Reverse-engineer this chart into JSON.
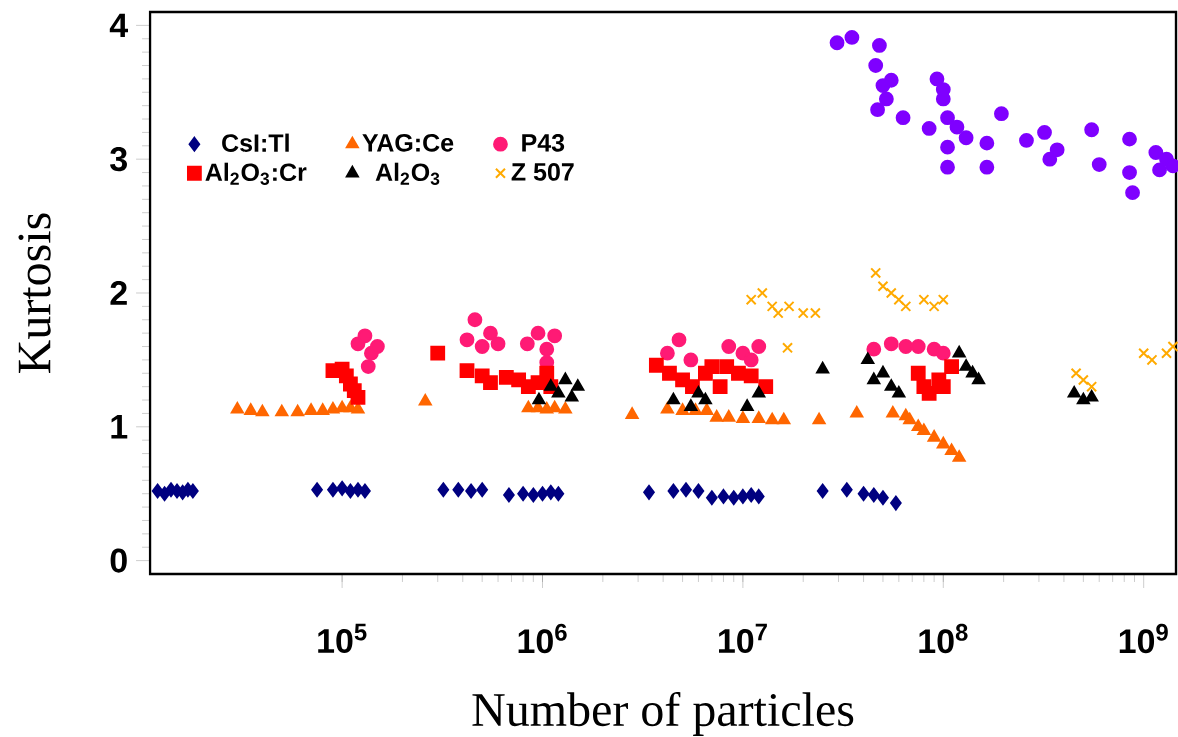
{
  "chart_data": {
    "type": "scatter",
    "xlabel": "Number of particles",
    "ylabel": "Kurtosis",
    "log": "x",
    "grid": false,
    "legend": "top left",
    "xlim": [
      11000,
      1450000000
    ],
    "ylim": [
      -0.1,
      4.1
    ],
    "xticks": [
      {
        "value": 100000,
        "label": "10$^{5}$"
      },
      {
        "value": 1000000,
        "label": "10$^{6}$"
      },
      {
        "value": 10000000,
        "label": "10$^{7}$"
      },
      {
        "value": 100000000,
        "label": "10$^{8}$"
      },
      {
        "value": 1000000000,
        "label": "10$^{9}$"
      }
    ],
    "yticks": [
      0,
      1,
      2,
      3,
      4
    ],
    "series": [
      {
        "name": "CsI:Tl",
        "color": "#000080",
        "marker": "diamond",
        "x": [
          12000,
          13000,
          14000,
          15000,
          16000,
          17000,
          18000,
          75000,
          90000,
          100000,
          110000,
          120000,
          130000,
          320000,
          380000,
          440000,
          500000,
          680000,
          800000,
          900000,
          1000000,
          1100000,
          1200000,
          3400000,
          4500000,
          5200000,
          6000000,
          7000000,
          8000000,
          9000000,
          10000000,
          11000000,
          12000000,
          25000000,
          33000000,
          40000000,
          45000000,
          50000000,
          58000000
        ],
        "values": [
          0.52,
          0.5,
          0.53,
          0.52,
          0.51,
          0.53,
          0.52,
          0.53,
          0.53,
          0.54,
          0.52,
          0.53,
          0.52,
          0.53,
          0.53,
          0.52,
          0.53,
          0.49,
          0.5,
          0.49,
          0.5,
          0.51,
          0.5,
          0.51,
          0.52,
          0.53,
          0.52,
          0.47,
          0.48,
          0.47,
          0.48,
          0.49,
          0.48,
          0.52,
          0.53,
          0.5,
          0.49,
          0.47,
          0.43
        ]
      },
      {
        "name": "YAG:Ce",
        "color": "#ff6600",
        "marker": "triangle",
        "x": [
          30000,
          35000,
          40000,
          50000,
          60000,
          70000,
          80000,
          90000,
          100000,
          110000,
          120000,
          260000,
          850000,
          950000,
          1050000,
          1150000,
          1300000,
          2800000,
          4200000,
          5000000,
          5800000,
          6600000,
          7400000,
          8500000,
          10000000,
          12000000,
          14000000,
          16000000,
          24000000,
          37000000,
          56000000,
          65000000,
          68000000,
          75000000,
          80000000,
          90000000,
          100000000,
          110000000,
          120000000
        ],
        "values": [
          1.13,
          1.12,
          1.11,
          1.11,
          1.11,
          1.12,
          1.12,
          1.13,
          1.14,
          1.14,
          1.13,
          1.19,
          1.14,
          1.14,
          1.13,
          1.14,
          1.13,
          1.09,
          1.13,
          1.12,
          1.12,
          1.12,
          1.07,
          1.07,
          1.06,
          1.06,
          1.05,
          1.05,
          1.05,
          1.1,
          1.1,
          1.08,
          1.05,
          1.0,
          0.97,
          0.92,
          0.87,
          0.82,
          0.77
        ]
      },
      {
        "name": "P43",
        "color": "#ff1a75",
        "marker": "circle",
        "x": [
          120000,
          130000,
          140000,
          150000,
          135000,
          420000,
          460000,
          500000,
          550000,
          600000,
          840000,
          950000,
          1050000,
          1150000,
          1050000,
          4200000,
          4800000,
          5500000,
          8500000,
          10000000,
          12000000,
          11000000,
          45000000,
          55000000,
          65000000,
          75000000,
          90000000,
          100000000
        ],
        "values": [
          1.62,
          1.68,
          1.55,
          1.6,
          1.45,
          1.65,
          1.8,
          1.6,
          1.7,
          1.62,
          1.62,
          1.7,
          1.58,
          1.68,
          1.48,
          1.55,
          1.65,
          1.5,
          1.6,
          1.55,
          1.6,
          1.5,
          1.58,
          1.62,
          1.6,
          1.6,
          1.58,
          1.55
        ]
      },
      {
        "name": "Al$_{2}$O$_{3}$:Cr",
        "color": "#ff0000",
        "marker": "square",
        "x": [
          90000,
          100000,
          105000,
          110000,
          115000,
          120000,
          300000,
          420000,
          500000,
          550000,
          660000,
          760000,
          850000,
          950000,
          1050000,
          1100000,
          3700000,
          4300000,
          5000000,
          5600000,
          6500000,
          7000000,
          7700000,
          8300000,
          9500000,
          11000000,
          13000000,
          75000000,
          80000000,
          85000000,
          95000000,
          100000000,
          110000000
        ],
        "values": [
          1.42,
          1.43,
          1.38,
          1.32,
          1.27,
          1.22,
          1.55,
          1.42,
          1.38,
          1.33,
          1.37,
          1.35,
          1.3,
          1.33,
          1.4,
          1.3,
          1.46,
          1.4,
          1.35,
          1.3,
          1.4,
          1.45,
          1.3,
          1.45,
          1.4,
          1.38,
          1.3,
          1.4,
          1.3,
          1.25,
          1.35,
          1.3,
          1.45
        ]
      },
      {
        "name": "Al$_{2}$O$_{3}$",
        "color": "#000000",
        "marker": "triangle",
        "x": [
          960000,
          1100000,
          1200000,
          1300000,
          1400000,
          1500000,
          4500000,
          5500000,
          6000000,
          6500000,
          10500000,
          12000000,
          25000000,
          42000000,
          45000000,
          50000000,
          55000000,
          60000000,
          120000000,
          130000000,
          140000000,
          150000000,
          450000000,
          500000000,
          550000000
        ],
        "values": [
          1.2,
          1.3,
          1.25,
          1.35,
          1.22,
          1.3,
          1.2,
          1.15,
          1.25,
          1.2,
          1.15,
          1.25,
          1.43,
          1.5,
          1.35,
          1.4,
          1.3,
          1.25,
          1.55,
          1.45,
          1.4,
          1.35,
          1.25,
          1.2,
          1.22
        ]
      },
      {
        "name": "Z 507",
        "color": "#ffaa00",
        "marker": "cross",
        "x": [
          11000000,
          12500000,
          14000000,
          15000000,
          17000000,
          20000000,
          23000000,
          16700000,
          46000000,
          50000000,
          55000000,
          60000000,
          65000000,
          80000000,
          90000000,
          100000000,
          460000000,
          500000000,
          550000000,
          1000000000,
          1100000000,
          1300000000,
          1400000000
        ],
        "values": [
          1.95,
          2.0,
          1.9,
          1.85,
          1.9,
          1.85,
          1.85,
          1.59,
          2.15,
          2.05,
          2.0,
          1.95,
          1.9,
          1.95,
          1.9,
          1.95,
          1.4,
          1.35,
          1.3,
          1.55,
          1.5,
          1.55,
          1.6
        ]
      },
      {
        "color": "#7f00ff",
        "marker": "circle",
        "x": [
          29500000,
          35000000,
          48000000,
          46000000,
          50000000,
          52000000,
          55000000,
          48000000,
          47000000,
          63000000,
          85000000,
          93000000,
          100000000,
          100000000,
          105000000,
          117000000,
          105000000,
          105000000,
          130000000,
          165000000,
          165000000,
          195000000,
          260000000,
          320000000,
          340000000,
          370000000,
          550000000,
          600000000,
          850000000,
          850000000,
          880000000,
          1150000000,
          1300000000,
          1400000000,
          1200000000
        ],
        "values": [
          3.87,
          3.91,
          3.85,
          3.7,
          3.55,
          3.45,
          3.59,
          null,
          3.37,
          3.31,
          3.23,
          3.6,
          3.52,
          3.45,
          3.31,
          3.24,
          3.09,
          2.94,
          3.16,
          3.12,
          2.94,
          3.34,
          3.14,
          3.2,
          3.0,
          3.07,
          3.22,
          2.96,
          3.15,
          2.9,
          2.75,
          3.05,
          3.0,
          2.95,
          2.92
        ]
      }
    ]
  }
}
